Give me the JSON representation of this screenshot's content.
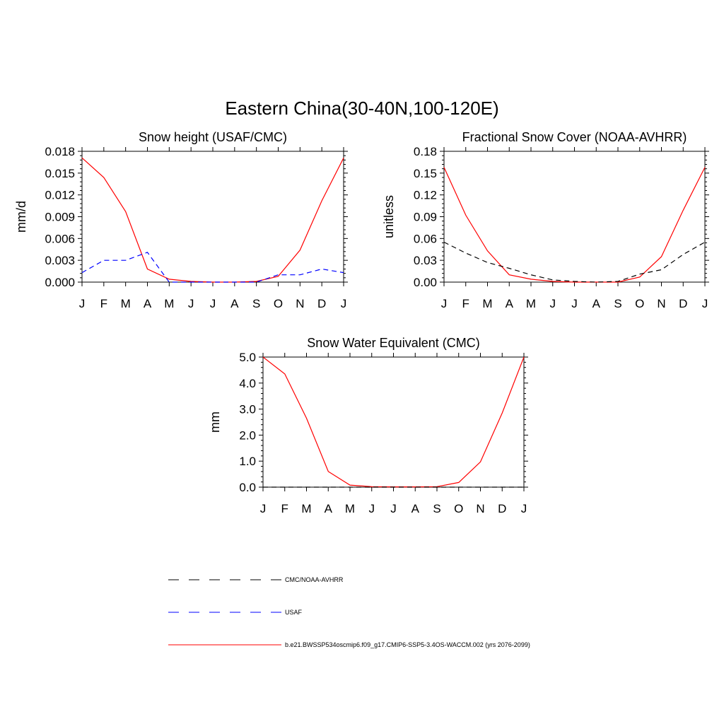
{
  "figure_title": "Eastern China(30-40N,100-120E)",
  "legend": [
    {
      "label": "CMC/NOAA-AVHRR",
      "color": "#000000",
      "dash": "dashed"
    },
    {
      "label": "USAF",
      "color": "#0000ff",
      "dash": "dashed"
    },
    {
      "label": "b.e21.BWSSP534oscmip6.f09_g17.CMIP6-SSP5-3.4OS-WACCM.002 (yrs 2076-2099)",
      "color": "#ff0000",
      "dash": "solid"
    }
  ],
  "chart_data": [
    {
      "type": "line",
      "title": "Snow height (USAF/CMC)",
      "ylabel": "mm/d",
      "xlabel": "",
      "categories": [
        "J",
        "F",
        "M",
        "A",
        "M",
        "J",
        "J",
        "A",
        "S",
        "O",
        "N",
        "D",
        "J"
      ],
      "ylim": [
        0,
        0.018
      ],
      "yticks": [
        "0.000",
        "0.003",
        "0.006",
        "0.009",
        "0.012",
        "0.015",
        "0.018"
      ],
      "series": [
        {
          "name": "b.e21.BWSSP534oscmip6.f09_g17.CMIP6-SSP5-3.4OS-WACCM.002 (yrs 2076-2099)",
          "color": "#ff0000",
          "dash": "solid",
          "values": [
            0.0171,
            0.0144,
            0.0097,
            0.0018,
            0.0004,
            0.0001,
            0.0,
            0.0,
            0.0001,
            0.0008,
            0.0044,
            0.0112,
            0.0171
          ]
        },
        {
          "name": "USAF",
          "color": "#0000ff",
          "dash": "dashed",
          "values": [
            0.0013,
            0.003,
            0.003,
            0.0041,
            0.0,
            0.0,
            0.0,
            0.0,
            0.0,
            0.001,
            0.001,
            0.0018,
            0.0013
          ]
        }
      ]
    },
    {
      "type": "line",
      "title": "Fractional Snow Cover (NOAA-AVHRR)",
      "ylabel": "unitless",
      "xlabel": "",
      "categories": [
        "J",
        "F",
        "M",
        "A",
        "M",
        "J",
        "J",
        "A",
        "S",
        "O",
        "N",
        "D",
        "J"
      ],
      "ylim": [
        0,
        0.18
      ],
      "yticks": [
        "0.00",
        "0.03",
        "0.06",
        "0.09",
        "0.12",
        "0.15",
        "0.18"
      ],
      "series": [
        {
          "name": "b.e21.BWSSP534oscmip6.f09_g17.CMIP6-SSP5-3.4OS-WACCM.002 (yrs 2076-2099)",
          "color": "#ff0000",
          "dash": "solid",
          "values": [
            0.158,
            0.092,
            0.043,
            0.01,
            0.004,
            0.001,
            0.0,
            0.0,
            0.0,
            0.007,
            0.035,
            0.099,
            0.158
          ]
        },
        {
          "name": "CMC/NOAA-AVHRR",
          "color": "#000000",
          "dash": "dashed",
          "values": [
            0.055,
            0.04,
            0.027,
            0.019,
            0.01,
            0.003,
            0.001,
            0.0,
            0.001,
            0.011,
            0.017,
            0.038,
            0.055
          ]
        }
      ]
    },
    {
      "type": "line",
      "title": "Snow Water Equivalent (CMC)",
      "ylabel": "mm",
      "xlabel": "",
      "categories": [
        "J",
        "F",
        "M",
        "A",
        "M",
        "J",
        "J",
        "A",
        "S",
        "O",
        "N",
        "D",
        "J"
      ],
      "ylim": [
        0,
        5.0
      ],
      "yticks": [
        "0.0",
        "1.0",
        "2.0",
        "3.0",
        "4.0",
        "5.0"
      ],
      "series": [
        {
          "name": "b.e21.BWSSP534oscmip6.f09_g17.CMIP6-SSP5-3.4OS-WACCM.002 (yrs 2076-2099)",
          "color": "#ff0000",
          "dash": "solid",
          "values": [
            5.0,
            4.35,
            2.65,
            0.6,
            0.08,
            0.02,
            0.01,
            0.01,
            0.02,
            0.18,
            0.97,
            2.85,
            5.0
          ]
        },
        {
          "name": "CMC/NOAA-AVHRR",
          "color": "#000000",
          "dash": "dashed",
          "values": [
            0.0,
            0.0,
            0.0,
            0.0,
            0.0,
            0.0,
            0.0,
            0.0,
            0.0,
            0.0,
            0.0,
            0.0,
            0.0
          ]
        }
      ]
    }
  ]
}
